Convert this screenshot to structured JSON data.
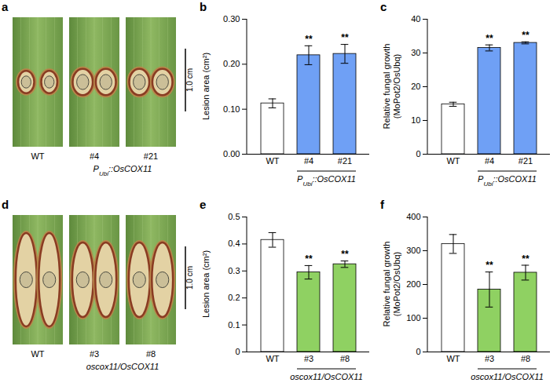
{
  "images": [
    {
      "panel": "a",
      "labels": [
        "WT",
        "#4",
        "#21"
      ],
      "group": {
        "label": [
          "P",
          "Ubi",
          "::OsCOX11"
        ],
        "categories": [
          "#4",
          "#21"
        ]
      },
      "scale_bar": "1.0 cm"
    },
    {
      "panel": "d",
      "labels": [
        "WT",
        "#3",
        "#8"
      ],
      "group": {
        "label": [
          "oscox11/OsCOX11"
        ],
        "categories": [
          "#3",
          "#8"
        ]
      },
      "scale_bar": "1.0 cm"
    }
  ],
  "chart_data": [
    {
      "panel": "b",
      "type": "bar",
      "ylabel": [
        "Lesion area (cm²)"
      ],
      "categories": [
        "WT",
        "#4",
        "#21"
      ],
      "values": [
        0.113,
        0.22,
        0.223
      ],
      "errors": [
        0.01,
        0.021,
        0.021
      ],
      "colors": [
        "#ffffff",
        "#6fa0f5",
        "#6fa0f5"
      ],
      "ylim": [
        0,
        0.3
      ],
      "yticks": [
        {
          "value": 0,
          "label": "0.00"
        },
        {
          "value": 0.1,
          "label": "0.10"
        },
        {
          "value": 0.2,
          "label": "0.20"
        },
        {
          "value": 0.3,
          "label": "0.30"
        }
      ],
      "annotations": [
        {
          "category": "#4",
          "text": "**"
        },
        {
          "category": "#21",
          "text": "**"
        }
      ],
      "group": {
        "label": [
          "P",
          "Ubi",
          "::OsCOX11"
        ],
        "categories": [
          "#4",
          "#21"
        ]
      }
    },
    {
      "panel": "c",
      "type": "bar",
      "ylabel": [
        "Relative fungal growth",
        "(MoPot2/OsUbq)"
      ],
      "categories": [
        "WT",
        "#4",
        "#21"
      ],
      "values": [
        14.8,
        31.5,
        33.0
      ],
      "errors": [
        0.6,
        0.9,
        0.3
      ],
      "colors": [
        "#ffffff",
        "#6fa0f5",
        "#6fa0f5"
      ],
      "ylim": [
        0,
        40
      ],
      "yticks": [
        0,
        10,
        20,
        30,
        40
      ],
      "annotations": [
        {
          "category": "#4",
          "text": "**"
        },
        {
          "category": "#21",
          "text": "**"
        }
      ],
      "group": {
        "label": [
          "P",
          "Ubi",
          "::OsCOX11"
        ],
        "categories": [
          "#4",
          "#21"
        ]
      }
    },
    {
      "panel": "e",
      "type": "bar",
      "ylabel": [
        "Lesion area (cm²)"
      ],
      "categories": [
        "WT",
        "#3",
        "#8"
      ],
      "values": [
        0.415,
        0.295,
        0.325
      ],
      "errors": [
        0.027,
        0.025,
        0.012
      ],
      "colors": [
        "#ffffff",
        "#8fd162",
        "#8fd162"
      ],
      "ylim": [
        0,
        0.5
      ],
      "yticks": [
        0,
        0.1,
        0.2,
        0.3,
        0.4,
        0.5
      ],
      "annotations": [
        {
          "category": "#3",
          "text": "**"
        },
        {
          "category": "#8",
          "text": "**"
        }
      ],
      "group": {
        "label": [
          "oscox11/OsCOX11"
        ],
        "categories": [
          "#3",
          "#8"
        ]
      }
    },
    {
      "panel": "f",
      "type": "bar",
      "ylabel": [
        "Relative fungal growth",
        "(MoPot2/OsUbq)"
      ],
      "categories": [
        "WT",
        "#3",
        "#8"
      ],
      "values": [
        320,
        185,
        235
      ],
      "errors": [
        28,
        52,
        22
      ],
      "colors": [
        "#ffffff",
        "#8fd162",
        "#8fd162"
      ],
      "ylim": [
        0,
        400
      ],
      "yticks": [
        0,
        100,
        200,
        300,
        400
      ],
      "annotations": [
        {
          "category": "#3",
          "text": "**"
        },
        {
          "category": "#8",
          "text": "**"
        }
      ],
      "group": {
        "label": [
          "oscox11/OsCOX11"
        ],
        "categories": [
          "#3",
          "#8"
        ]
      }
    }
  ]
}
